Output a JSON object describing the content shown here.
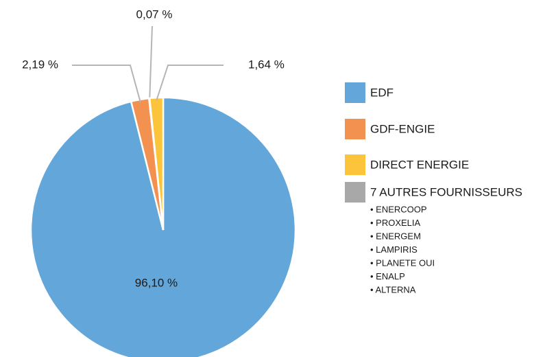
{
  "chart_data": {
    "type": "pie",
    "categories": [
      "EDF",
      "GDF-ENGIE",
      "DIRECT ENERGIE",
      "7 AUTRES FOURNISSEURS"
    ],
    "values": [
      96.1,
      2.19,
      1.64,
      0.07
    ],
    "value_labels": [
      "96,10 %",
      "2,19 %",
      "1,64 %",
      "0,07 %"
    ],
    "colors": [
      "#62a6da",
      "#f39250",
      "#fcc43a",
      "#a8a8a8"
    ],
    "legend_sublist": [
      "• ENERCOOP",
      "• PROXELIA",
      "• ENERGEM",
      "• LAMPIRIS",
      "• PLANETE OUI",
      "• ENALP",
      "• ALTERNA"
    ]
  }
}
